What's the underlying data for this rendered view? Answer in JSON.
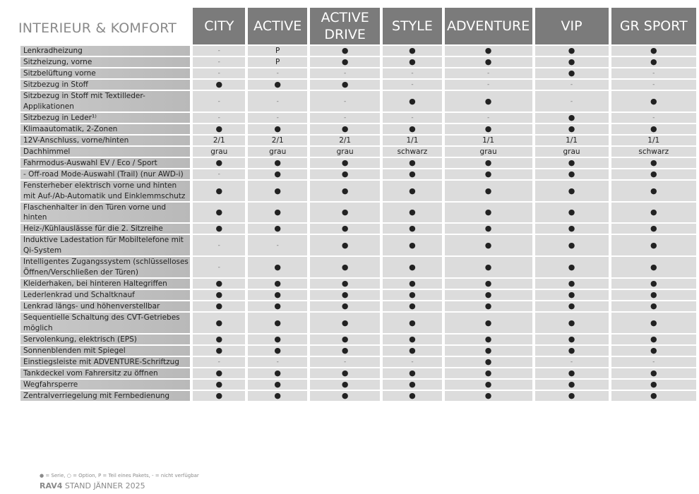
{
  "title": "INTERIEUR & KOMFORT",
  "columns": [
    "CITY",
    "ACTIVE",
    "ACTIVE DRIVE",
    "STYLE",
    "ADVENTURE",
    "VIP",
    "GR SPORT"
  ],
  "rows": [
    {
      "label": "Lenkradheizung",
      "values": [
        "-",
        "P",
        "●",
        "●",
        "●",
        "●",
        "●"
      ]
    },
    {
      "label": "Sitzheizung, vorne",
      "values": [
        "-",
        "P",
        "●",
        "●",
        "●",
        "●",
        "●"
      ]
    },
    {
      "label": "Sitzbelüftung vorne",
      "values": [
        "-",
        "-",
        "-",
        "-",
        "-",
        "●",
        "-"
      ]
    },
    {
      "label": "Sitzbezug in Stoff",
      "values": [
        "●",
        "●",
        "●",
        "-",
        "-",
        "-",
        "-"
      ]
    },
    {
      "label": "Sitzbezug in Stoff mit Textilleder-Applikationen",
      "values": [
        "-",
        "-",
        "-",
        "●",
        "●",
        "-",
        "●"
      ],
      "double": true
    },
    {
      "label": "Sitzbezug in Leder¹⁾",
      "values": [
        "-",
        "-",
        "-",
        "-",
        "-",
        "●",
        "-"
      ]
    },
    {
      "label": "Klimaautomatik, 2-Zonen",
      "values": [
        "●",
        "●",
        "●",
        "●",
        "●",
        "●",
        "●"
      ]
    },
    {
      "label": "12V-Anschluss, vorne/hinten",
      "values": [
        "2/1",
        "2/1",
        "2/1",
        "1/1",
        "1/1",
        "1/1",
        "1/1"
      ]
    },
    {
      "label": "Dachhimmel",
      "values": [
        "grau",
        "grau",
        "grau",
        "schwarz",
        "grau",
        "grau",
        "schwarz"
      ]
    },
    {
      "label": "Fahrmodus-Auswahl EV / Eco / Sport",
      "values": [
        "●",
        "●",
        "●",
        "●",
        "●",
        "●",
        "●"
      ]
    },
    {
      "label": "- Off-road Mode-Auswahl (Trail) (nur AWD-i)",
      "values": [
        "-",
        "●",
        "●",
        "●",
        "●",
        "●",
        "●"
      ]
    },
    {
      "label": "Fensterheber elektrisch vorne und hinten mit Auf-/Ab-Automatik und Einklemmschutz",
      "values": [
        "●",
        "●",
        "●",
        "●",
        "●",
        "●",
        "●"
      ],
      "double": true
    },
    {
      "label": "Flaschenhalter in den Türen vorne und hinten",
      "values": [
        "●",
        "●",
        "●",
        "●",
        "●",
        "●",
        "●"
      ]
    },
    {
      "label": "Heiz-/Kühlauslässe für die 2. Sitzreihe",
      "values": [
        "●",
        "●",
        "●",
        "●",
        "●",
        "●",
        "●"
      ]
    },
    {
      "label": "Induktive Ladestation für Mobiltelefone mit Qi-System",
      "values": [
        "-",
        "-",
        "●",
        "●",
        "●",
        "●",
        "●"
      ],
      "double": true
    },
    {
      "label": "Intelligentes Zugangssystem (schlüsselloses Öffnen/Verschließen der Türen)",
      "values": [
        "-",
        "●",
        "●",
        "●",
        "●",
        "●",
        "●"
      ],
      "double": true
    },
    {
      "label": "Kleiderhaken, bei hinteren Haltegriffen",
      "values": [
        "●",
        "●",
        "●",
        "●",
        "●",
        "●",
        "●"
      ]
    },
    {
      "label": "Lederlenkrad und Schaltknauf",
      "values": [
        "●",
        "●",
        "●",
        "●",
        "●",
        "●",
        "●"
      ]
    },
    {
      "label": "Lenkrad längs- und höhenverstellbar",
      "values": [
        "●",
        "●",
        "●",
        "●",
        "●",
        "●",
        "●"
      ]
    },
    {
      "label": "Sequentielle Schaltung des CVT-Getriebes möglich",
      "values": [
        "●",
        "●",
        "●",
        "●",
        "●",
        "●",
        "●"
      ],
      "double": true
    },
    {
      "label": "Servolenkung, elektrisch (EPS)",
      "values": [
        "●",
        "●",
        "●",
        "●",
        "●",
        "●",
        "●"
      ]
    },
    {
      "label": "Sonnenblenden mit Spiegel",
      "values": [
        "●",
        "●",
        "●",
        "●",
        "●",
        "●",
        "●"
      ]
    },
    {
      "label": "Einstiegsleiste mit ADVENTURE-Schriftzug",
      "values": [
        "-",
        "-",
        "-",
        "-",
        "●",
        "-",
        "-"
      ]
    },
    {
      "label": "Tankdeckel vom Fahrersitz zu öffnen",
      "values": [
        "●",
        "●",
        "●",
        "●",
        "●",
        "●",
        "●"
      ]
    },
    {
      "label": "Wegfahrsperre",
      "values": [
        "●",
        "●",
        "●",
        "●",
        "●",
        "●",
        "●"
      ]
    },
    {
      "label": "Zentralverriegelung mit Fernbedienung",
      "values": [
        "●",
        "●",
        "●",
        "●",
        "●",
        "●",
        "●"
      ]
    }
  ],
  "legend": "● = Serie, ○ = Option, P = Teil eines Pakets, - = nicht verfügbar",
  "footer": {
    "model": "RAV4",
    "stand": "STAND JÄNNER 2025"
  },
  "colors": {
    "header_bg": "#7b7b7b",
    "cell_bg": "#dcdcdc",
    "label_bg": "#bfbfbf",
    "title": "#8a8a8a"
  }
}
